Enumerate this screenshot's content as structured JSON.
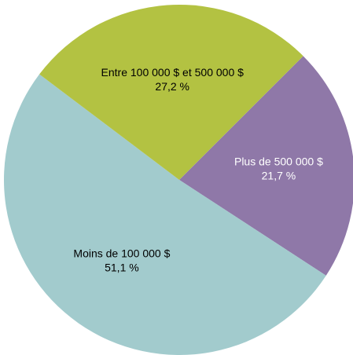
{
  "chart_data": {
    "type": "pie",
    "categories": [
      "Plus de 500 000 $",
      "Moins de 100 000 $",
      "Entre 100 000 $ et 500 000 $"
    ],
    "values": [
      21.7,
      51.1,
      27.2
    ],
    "value_labels": [
      "21,7 %",
      "51,1 %",
      "27,2 %"
    ],
    "colors": [
      "#8f78a8",
      "#a2cbcd",
      "#b3c242"
    ],
    "label_colors": [
      "#ffffff",
      "#000000",
      "#000000"
    ]
  }
}
